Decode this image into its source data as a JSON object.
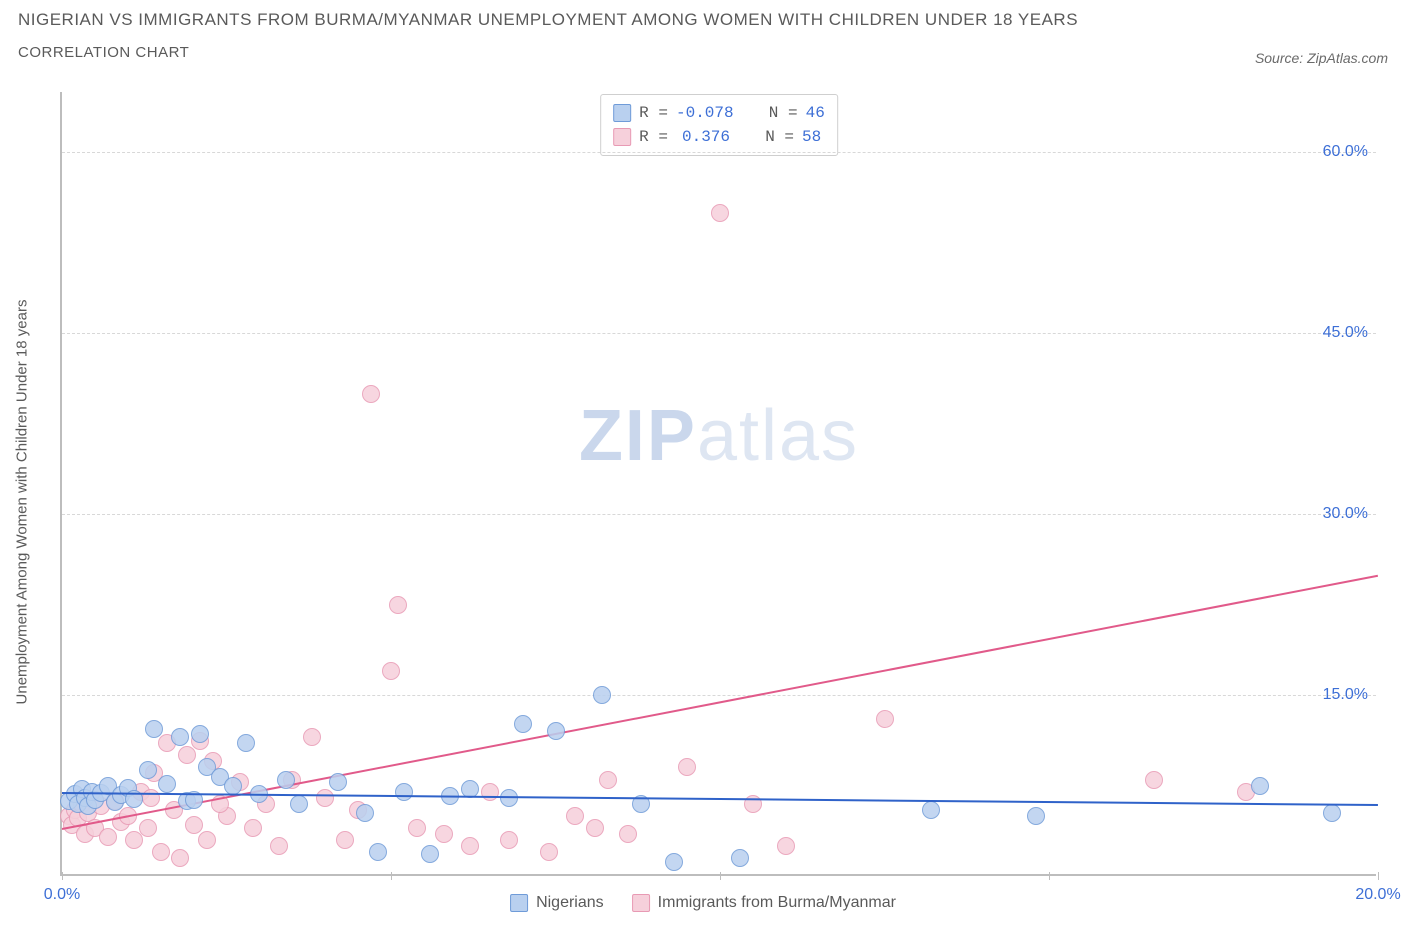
{
  "header": {
    "title_line1": "NIGERIAN VS IMMIGRANTS FROM BURMA/MYANMAR UNEMPLOYMENT AMONG WOMEN WITH CHILDREN UNDER 18 YEARS",
    "title_line2": "CORRELATION CHART",
    "source_prefix": "Source: ",
    "source_name": "ZipAtlas.com"
  },
  "chart": {
    "type": "scatter",
    "ylabel": "Unemployment Among Women with Children Under 18 years",
    "xlim": [
      0,
      20
    ],
    "ylim": [
      0,
      65
    ],
    "x_ticks": [
      0,
      5,
      10,
      15,
      20
    ],
    "x_tick_labels": [
      "0.0%",
      "",
      "",
      "",
      "20.0%"
    ],
    "y_ticks": [
      15,
      30,
      45,
      60
    ],
    "y_tick_labels": [
      "15.0%",
      "30.0%",
      "45.0%",
      "60.0%"
    ],
    "grid_color": "#d8d8d8",
    "axis_color": "#bdbdbd",
    "tick_label_color": "#3d6fd6",
    "tick_fontsize": 16,
    "label_fontsize": 15,
    "background_color": "#ffffff",
    "marker_radius": 9,
    "marker_stroke_width": 1.2,
    "marker_fill_opacity": 0.12,
    "watermark": {
      "text_a": "ZIP",
      "text_b": "atlas"
    },
    "series": {
      "a": {
        "label": "Nigerians",
        "color_stroke": "#6f9bd8",
        "color_fill": "#b9d0ef",
        "reg_color": "#2f62c9",
        "reg": {
          "x1": 0,
          "y1": 7.0,
          "x2": 20,
          "y2": 6.0
        },
        "stats": {
          "R_label": "R =",
          "R": "-0.078",
          "N_label": "N =",
          "N": "46"
        },
        "points": [
          [
            0.1,
            6.2
          ],
          [
            0.2,
            6.8
          ],
          [
            0.25,
            6.0
          ],
          [
            0.3,
            7.2
          ],
          [
            0.35,
            6.5
          ],
          [
            0.4,
            5.8
          ],
          [
            0.45,
            7.0
          ],
          [
            0.5,
            6.3
          ],
          [
            0.6,
            6.9
          ],
          [
            0.7,
            7.5
          ],
          [
            0.8,
            6.1
          ],
          [
            0.9,
            6.7
          ],
          [
            1.0,
            7.3
          ],
          [
            1.1,
            6.4
          ],
          [
            1.3,
            8.8
          ],
          [
            1.4,
            12.2
          ],
          [
            1.6,
            7.6
          ],
          [
            1.8,
            11.5
          ],
          [
            1.9,
            6.2
          ],
          [
            2.1,
            11.8
          ],
          [
            2.2,
            9.0
          ],
          [
            2.4,
            8.2
          ],
          [
            2.6,
            7.5
          ],
          [
            2.8,
            11.0
          ],
          [
            3.0,
            6.8
          ],
          [
            3.4,
            8.0
          ],
          [
            3.6,
            6.0
          ],
          [
            4.2,
            7.8
          ],
          [
            4.6,
            5.2
          ],
          [
            4.8,
            2.0
          ],
          [
            5.2,
            7.0
          ],
          [
            5.6,
            1.8
          ],
          [
            5.9,
            6.6
          ],
          [
            6.2,
            7.2
          ],
          [
            6.8,
            6.5
          ],
          [
            7.0,
            12.6
          ],
          [
            7.5,
            12.0
          ],
          [
            8.2,
            15.0
          ],
          [
            8.8,
            6.0
          ],
          [
            9.3,
            1.2
          ],
          [
            10.3,
            1.5
          ],
          [
            13.2,
            5.5
          ],
          [
            14.8,
            5.0
          ],
          [
            18.2,
            7.5
          ],
          [
            19.3,
            5.2
          ],
          [
            2.0,
            6.3
          ]
        ]
      },
      "b": {
        "label": "Immigrants from Burma/Myanmar",
        "color_stroke": "#e89ab4",
        "color_fill": "#f6d0db",
        "reg_color": "#e15a8a",
        "reg": {
          "x1": 0,
          "y1": 4.0,
          "x2": 20,
          "y2": 25.0
        },
        "stats": {
          "R_label": "R =",
          "R": "0.376",
          "N_label": "N =",
          "N": "58"
        },
        "points": [
          [
            0.1,
            5.0
          ],
          [
            0.15,
            4.2
          ],
          [
            0.2,
            5.5
          ],
          [
            0.25,
            4.8
          ],
          [
            0.3,
            6.0
          ],
          [
            0.35,
            3.5
          ],
          [
            0.4,
            5.2
          ],
          [
            0.5,
            4.0
          ],
          [
            0.6,
            5.8
          ],
          [
            0.7,
            3.2
          ],
          [
            0.8,
            6.2
          ],
          [
            0.9,
            4.5
          ],
          [
            1.0,
            5.0
          ],
          [
            1.1,
            3.0
          ],
          [
            1.2,
            7.0
          ],
          [
            1.3,
            4.0
          ],
          [
            1.4,
            8.5
          ],
          [
            1.5,
            2.0
          ],
          [
            1.6,
            11.0
          ],
          [
            1.7,
            5.5
          ],
          [
            1.8,
            1.5
          ],
          [
            1.9,
            10.0
          ],
          [
            2.0,
            4.2
          ],
          [
            2.1,
            11.2
          ],
          [
            2.2,
            3.0
          ],
          [
            2.3,
            9.5
          ],
          [
            2.5,
            5.0
          ],
          [
            2.7,
            7.8
          ],
          [
            2.9,
            4.0
          ],
          [
            3.1,
            6.0
          ],
          [
            3.3,
            2.5
          ],
          [
            3.5,
            8.0
          ],
          [
            4.0,
            6.5
          ],
          [
            4.3,
            3.0
          ],
          [
            4.5,
            5.5
          ],
          [
            4.7,
            40.0
          ],
          [
            5.0,
            17.0
          ],
          [
            5.1,
            22.5
          ],
          [
            5.4,
            4.0
          ],
          [
            5.8,
            3.5
          ],
          [
            6.2,
            2.5
          ],
          [
            6.5,
            7.0
          ],
          [
            6.8,
            3.0
          ],
          [
            7.4,
            2.0
          ],
          [
            7.8,
            5.0
          ],
          [
            8.1,
            4.0
          ],
          [
            8.3,
            8.0
          ],
          [
            8.6,
            3.5
          ],
          [
            9.5,
            9.0
          ],
          [
            10.0,
            55.0
          ],
          [
            10.5,
            6.0
          ],
          [
            11.0,
            2.5
          ],
          [
            12.5,
            13.0
          ],
          [
            16.6,
            8.0
          ],
          [
            18.0,
            7.0
          ],
          [
            3.8,
            11.5
          ],
          [
            2.4,
            6.0
          ],
          [
            1.35,
            6.5
          ]
        ]
      }
    }
  }
}
